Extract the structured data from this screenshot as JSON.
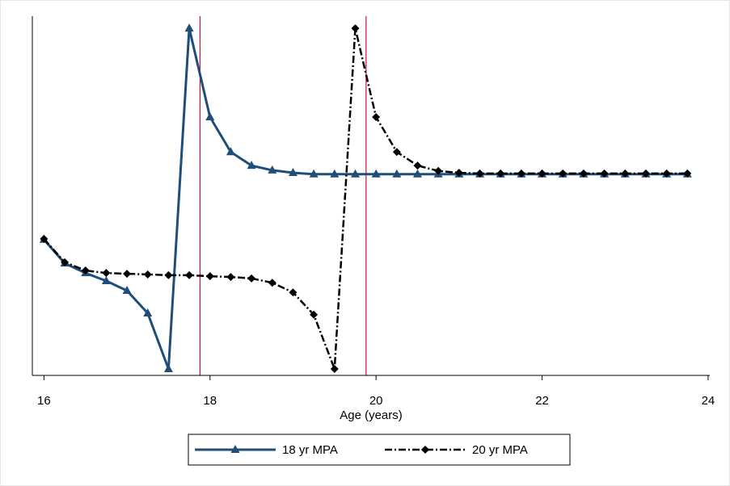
{
  "chart_data": {
    "type": "line",
    "x_label": "Age (years)",
    "x": [
      16,
      16.25,
      16.5,
      16.75,
      17,
      17.25,
      17.5,
      17.75,
      18,
      18.25,
      18.5,
      18.75,
      19,
      19.25,
      19.5,
      19.75,
      20,
      20.25,
      20.5,
      20.75,
      21,
      21.25,
      21.5,
      21.75,
      22,
      22.25,
      22.5,
      22.75,
      23,
      23.25,
      23.5,
      23.75
    ],
    "series": [
      {
        "name": "18 yr MPA",
        "color": "#1f4e79",
        "marker": "triangle",
        "dash": "solid",
        "values": [
          37.8,
          31.2,
          28.5,
          26.3,
          23.6,
          17.3,
          1.8,
          96.6,
          71.9,
          62.2,
          58.4,
          57.1,
          56.4,
          56.0,
          56.0,
          56.0,
          56.0,
          56.0,
          56.0,
          56.0,
          56.0,
          56.0,
          56.0,
          56.0,
          56.0,
          56.0,
          56.0,
          56.0,
          56.0,
          56.0,
          56.0,
          56.0
        ]
      },
      {
        "name": "20 yr MPA",
        "color": "#000000",
        "marker": "diamond",
        "dash": "dashdot",
        "values": [
          38.0,
          31.5,
          29.2,
          28.5,
          28.3,
          28.1,
          27.9,
          27.9,
          27.6,
          27.4,
          27.0,
          25.8,
          23.1,
          16.9,
          1.8,
          96.6,
          71.9,
          62.2,
          58.4,
          56.9,
          56.4,
          56.2,
          56.2,
          56.2,
          56.2,
          56.2,
          56.2,
          56.2,
          56.2,
          56.2,
          56.2,
          56.2
        ]
      }
    ],
    "vlines": [
      17.88,
      19.88
    ],
    "vline_color": "#c0143c",
    "xlim": [
      15.86,
      24.02
    ],
    "xticks": [
      16,
      18,
      20,
      22,
      24
    ],
    "ylim": [
      0,
      100
    ],
    "legend": "bottom"
  }
}
